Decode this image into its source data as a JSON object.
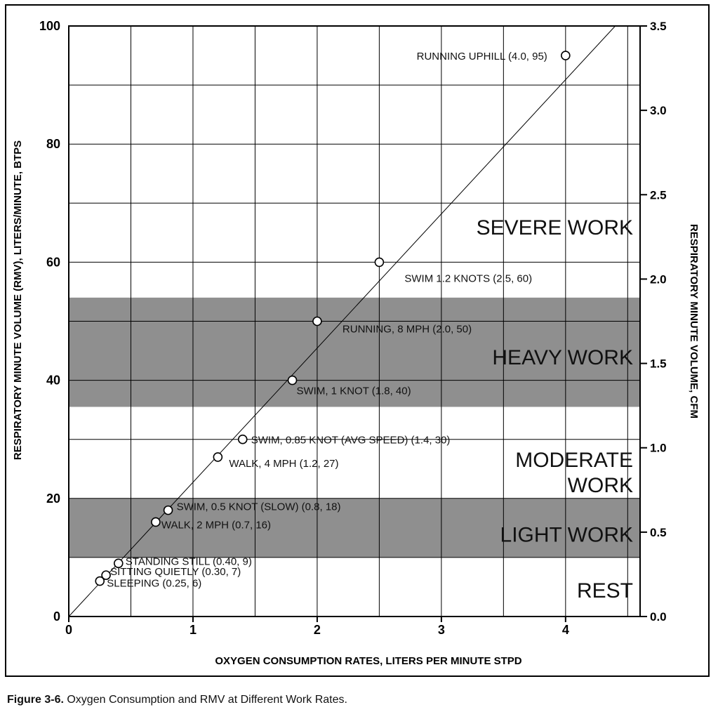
{
  "chart_data": {
    "type": "scatter",
    "xlabel": "OXYGEN CONSUMPTION RATES, LITERS PER MINUTE STPD",
    "ylabel": "RESPIRATORY MINUTE VOLUME (RMV), LITERS/MINUTE, BTPS",
    "y2label": "RESPIRATORY MINUTE VOLUME, CFM",
    "xlim": [
      0,
      4.6
    ],
    "ylim": [
      0,
      100
    ],
    "y2lim": [
      0,
      3.5
    ],
    "x_ticks": [
      "0",
      "1",
      "2",
      "3",
      "4"
    ],
    "y_ticks": [
      "0",
      "20",
      "40",
      "60",
      "80",
      "100"
    ],
    "y2_ticks": [
      "0.0",
      "0.5",
      "1.0",
      "1.5",
      "2.0",
      "2.5",
      "3.0",
      "3.5"
    ],
    "grid": true,
    "reference_line": {
      "x": [
        0,
        4.4
      ],
      "y": [
        0,
        100
      ]
    },
    "bands": [
      {
        "label": "LIGHT WORK",
        "y": [
          10,
          20
        ],
        "shaded": true,
        "color": "#8f8f8f"
      },
      {
        "label": "HEAVY WORK",
        "y": [
          35.5,
          54
        ],
        "shaded": true,
        "color": "#8f8f8f"
      }
    ],
    "region_labels": [
      {
        "lines": [
          "SEVERE WORK"
        ],
        "y": 66
      },
      {
        "lines": [
          "HEAVY WORK"
        ],
        "y": 44
      },
      {
        "lines": [
          "MODERATE",
          "WORK"
        ],
        "y": 24.5
      },
      {
        "lines": [
          "LIGHT WORK"
        ],
        "y": 14
      },
      {
        "lines": [
          "REST"
        ],
        "y": 4.5
      }
    ],
    "points": [
      {
        "x": 0.25,
        "y": 6,
        "label": "SLEEPING (0.25, 6)"
      },
      {
        "x": 0.3,
        "y": 7,
        "label": "SITTING QUIETLY  (0.30, 7)"
      },
      {
        "x": 0.4,
        "y": 9,
        "label": "STANDING STILL  (0.40, 9)"
      },
      {
        "x": 0.7,
        "y": 16,
        "label": "WALK, 2 MPH (0.7, 16)"
      },
      {
        "x": 0.8,
        "y": 18,
        "label": "SWIM, 0.5 KNOT (SLOW) (0.8, 18)"
      },
      {
        "x": 1.2,
        "y": 27,
        "label": "WALK, 4 MPH (1.2, 27)"
      },
      {
        "x": 1.4,
        "y": 30,
        "label": "SWIM, 0.85 KNOT (AVG SPEED) (1.4, 30)"
      },
      {
        "x": 1.8,
        "y": 40,
        "label": "SWIM, 1 KNOT (1.8, 40)"
      },
      {
        "x": 2.0,
        "y": 50,
        "label": "RUNNING, 8 MPH (2.0, 50)"
      },
      {
        "x": 2.5,
        "y": 60,
        "label": "SWIM 1.2 KNOTS (2.5, 60)"
      },
      {
        "x": 4.0,
        "y": 95,
        "label": "RUNNING UPHILL (4.0, 95)"
      }
    ]
  },
  "caption": {
    "prefix": "Figure 3-6.",
    "text": "Oxygen Consumption and RMV at Different Work Rates."
  }
}
